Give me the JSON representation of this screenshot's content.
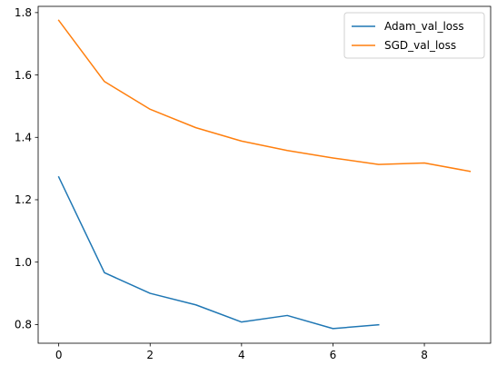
{
  "chart_data": {
    "type": "line",
    "title": "",
    "xlabel": "",
    "ylabel": "",
    "xlim": [
      -0.45,
      9.45
    ],
    "ylim": [
      0.74,
      1.82
    ],
    "xticks": [
      0,
      2,
      4,
      6,
      8
    ],
    "xtick_labels": [
      "0",
      "2",
      "4",
      "6",
      "8"
    ],
    "yticks": [
      0.8,
      1.0,
      1.2,
      1.4,
      1.6,
      1.8
    ],
    "ytick_labels": [
      "0.8",
      "1.0",
      "1.2",
      "1.4",
      "1.6",
      "1.8"
    ],
    "grid": false,
    "legend_position": "top-right",
    "series": [
      {
        "name": "Adam_val_loss",
        "color": "#1f77b4",
        "x": [
          0,
          1,
          2,
          3,
          4,
          5,
          6,
          7
        ],
        "values": [
          1.273,
          0.966,
          0.9,
          0.863,
          0.808,
          0.829,
          0.787,
          0.799
        ]
      },
      {
        "name": "SGD_val_loss",
        "color": "#ff7f0e",
        "x": [
          0,
          1,
          2,
          3,
          4,
          5,
          6,
          7,
          8,
          9
        ],
        "values": [
          1.775,
          1.579,
          1.49,
          1.431,
          1.388,
          1.358,
          1.334,
          1.313,
          1.318,
          1.291
        ]
      }
    ]
  }
}
